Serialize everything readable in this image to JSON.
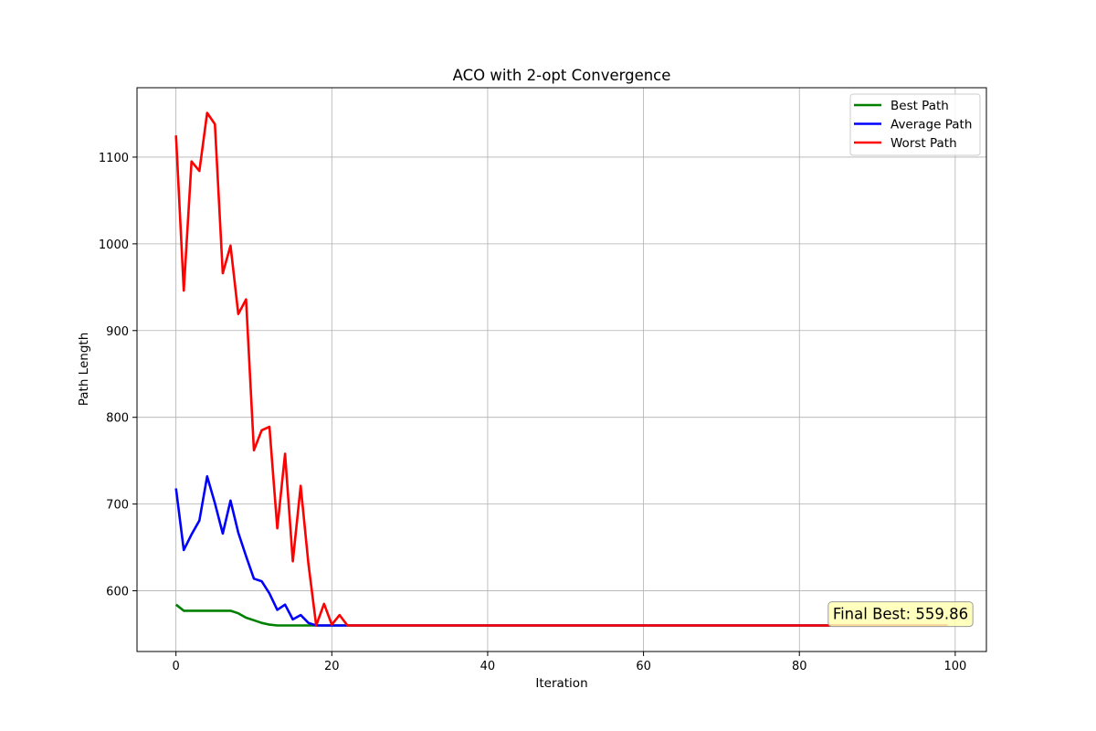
{
  "chart_data": {
    "type": "line",
    "title": "ACO with 2-opt Convergence",
    "xlabel": "Iteration",
    "ylabel": "Path Length",
    "xlim": [
      -5,
      104
    ],
    "ylim": [
      530,
      1180
    ],
    "xticks": [
      0,
      20,
      40,
      60,
      80,
      100
    ],
    "yticks": [
      600,
      700,
      800,
      900,
      1000,
      1100
    ],
    "grid": true,
    "legend_position": "upper right",
    "series": [
      {
        "name": "Best Path",
        "color": "#008000",
        "x": [
          0,
          1,
          2,
          3,
          4,
          5,
          6,
          7,
          8,
          9,
          10,
          11,
          12,
          13,
          14,
          15,
          16,
          17,
          18,
          19,
          20,
          21,
          22,
          30,
          40,
          50,
          60,
          70,
          80,
          90,
          99
        ],
        "values": [
          584,
          577,
          577,
          577,
          577,
          577,
          577,
          577,
          574,
          569,
          566,
          563,
          561,
          560,
          560,
          560,
          560,
          560,
          560,
          560,
          560,
          560,
          560,
          560,
          560,
          560,
          560,
          560,
          560,
          560,
          560
        ]
      },
      {
        "name": "Average Path",
        "color": "#0000ff",
        "x": [
          0,
          1,
          2,
          3,
          4,
          5,
          6,
          7,
          8,
          9,
          10,
          11,
          12,
          13,
          14,
          15,
          16,
          17,
          18,
          19,
          20,
          21,
          22,
          30,
          40,
          50,
          60,
          70,
          80,
          90,
          99
        ],
        "values": [
          718,
          647,
          665,
          681,
          732,
          701,
          666,
          704,
          667,
          640,
          614,
          611,
          597,
          578,
          584,
          567,
          572,
          563,
          560,
          560,
          560,
          560,
          560,
          560,
          560,
          560,
          560,
          560,
          560,
          560,
          560
        ]
      },
      {
        "name": "Worst Path",
        "color": "#ff0000",
        "x": [
          0,
          1,
          2,
          3,
          4,
          5,
          6,
          7,
          8,
          9,
          10,
          11,
          12,
          13,
          14,
          15,
          16,
          17,
          18,
          19,
          20,
          21,
          22,
          30,
          40,
          50,
          60,
          70,
          80,
          90,
          99
        ],
        "values": [
          1125,
          946,
          1095,
          1084,
          1151,
          1138,
          966,
          998,
          919,
          936,
          762,
          785,
          789,
          672,
          758,
          634,
          721,
          631,
          560,
          585,
          561,
          572,
          560,
          560,
          560,
          560,
          560,
          560,
          560,
          560,
          560
        ]
      }
    ],
    "annotation": {
      "text": "Final Best: 559.86",
      "x": 99,
      "y": 559.86,
      "box_color": "#ffffb3"
    }
  }
}
